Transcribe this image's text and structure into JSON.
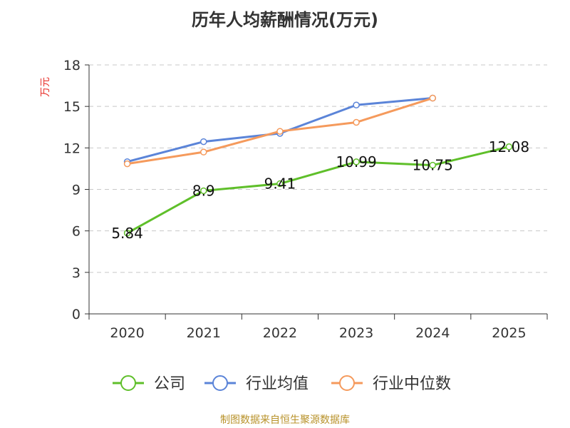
{
  "chart_data": {
    "type": "line",
    "title": "历年人均薪酬情况(万元)",
    "ylabel": "万元",
    "xlabel": "",
    "ylim": [
      0,
      18
    ],
    "yticks": [
      0,
      3,
      6,
      9,
      12,
      15,
      18
    ],
    "grid": true,
    "legend_position": "bottom",
    "categories": [
      "2020",
      "2021",
      "2022",
      "2023",
      "2024",
      "2025"
    ],
    "series": [
      {
        "name": "公司",
        "color": "#5fbf2a",
        "values": [
          5.84,
          8.9,
          9.41,
          10.99,
          10.75,
          12.08
        ],
        "labels": [
          "5.84",
          "8.9",
          "9.41",
          "10.99",
          "10.75",
          "12.08"
        ]
      },
      {
        "name": "行业均值",
        "color": "#5b84d8",
        "values": [
          11.0,
          12.45,
          13.05,
          15.1,
          15.6,
          null
        ]
      },
      {
        "name": "行业中位数",
        "color": "#f59a5c",
        "values": [
          10.85,
          11.7,
          13.2,
          13.85,
          15.6,
          null
        ]
      }
    ],
    "source": "制图数据来自恒生聚源数据库"
  }
}
